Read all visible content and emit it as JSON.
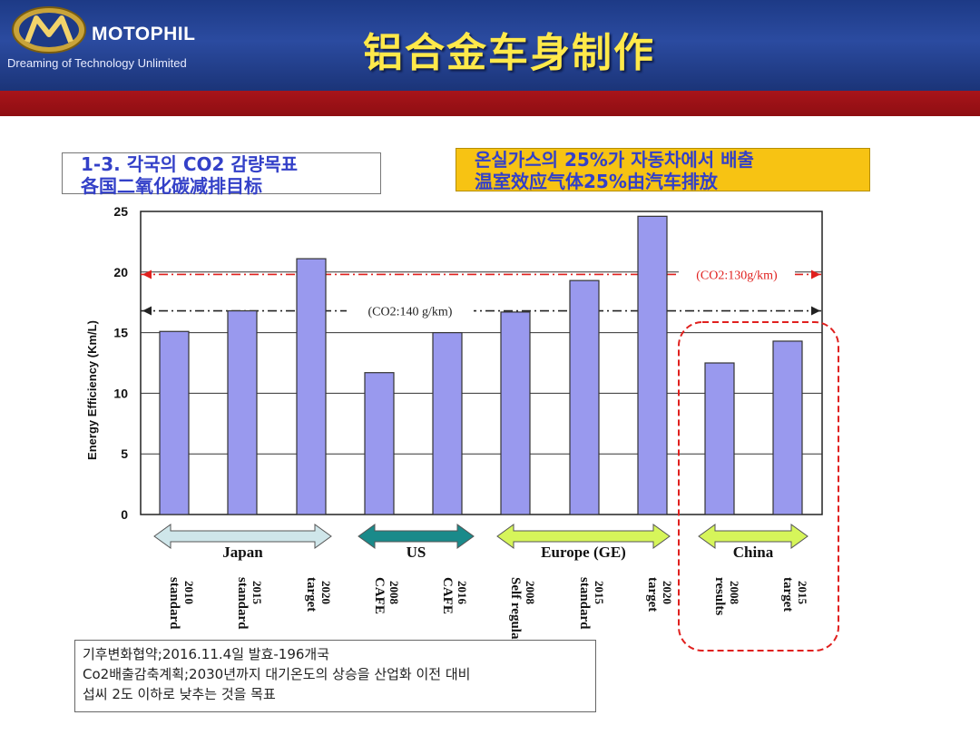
{
  "header": {
    "brand": "MOTOPHIL",
    "tagline": "Dreaming of Technology Unlimited",
    "title": "铝合金车身制作"
  },
  "box_left": {
    "line1": "1-3. 각국의 CO2 감량목표",
    "line2": "各国二氧化碳减排目标"
  },
  "box_right": {
    "line1": "온실가스의 25%가 자동차에서 배출",
    "line2": "温室效应气体25%由汽车排放"
  },
  "note": {
    "line1": "기후변화협약;2016.11.4일 발효-196개국",
    "line2": "Co2배출감축계획;2030년까지 대기온도의 상승을 산업화 이전 대비",
    "line3": "섭씨 2도 이하로 낮추는 것을 목표"
  },
  "colors": {
    "header_blue": "#1f3c8a",
    "red_band": "#a0121a",
    "bar_fill": "#9999ee",
    "title_yellow": "#ffe94a",
    "red_dashed": "#e0201e"
  },
  "chart_data": {
    "type": "bar",
    "ylabel": "Energy Efficiency (Km/L)",
    "ylim": [
      0,
      25
    ],
    "yticks": [
      0,
      5,
      10,
      15,
      20,
      25
    ],
    "grid": true,
    "bars": [
      {
        "group": "Japan",
        "year": "2010",
        "label": "standard",
        "value": 15.1
      },
      {
        "group": "Japan",
        "year": "2015",
        "label": "standard",
        "value": 16.8
      },
      {
        "group": "Japan",
        "year": "2020",
        "label": "target",
        "value": 21.1
      },
      {
        "group": "US",
        "year": "2008",
        "label": "CAFE",
        "value": 11.7
      },
      {
        "group": "US",
        "year": "2016",
        "label": "CAFE",
        "value": 15.0
      },
      {
        "group": "Europe (GE)",
        "year": "2008",
        "label": "Self regulation",
        "value": 16.7
      },
      {
        "group": "Europe (GE)",
        "year": "2015",
        "label": "standard",
        "value": 19.3
      },
      {
        "group": "Europe (GE)",
        "year": "2020",
        "label": "target",
        "value": 24.6
      },
      {
        "group": "China",
        "year": "2008",
        "label": "results",
        "value": 12.5
      },
      {
        "group": "China",
        "year": "2015",
        "label": "target",
        "value": 14.3
      }
    ],
    "reference_lines": [
      {
        "label": "(CO2:130g/km)",
        "value": 19.8,
        "color": "#e0201e",
        "style": "dash-dot"
      },
      {
        "label": "(CO2:140  g/km)",
        "value": 16.8,
        "color": "#222222",
        "style": "dash-dot"
      }
    ],
    "groups": [
      {
        "name": "Japan",
        "color": "#cfe6ea"
      },
      {
        "name": "US",
        "color": "#1a8a8a"
      },
      {
        "name": "Europe (GE)",
        "color": "#d6f55a"
      },
      {
        "name": "China",
        "color": "#d6f55a"
      }
    ]
  }
}
